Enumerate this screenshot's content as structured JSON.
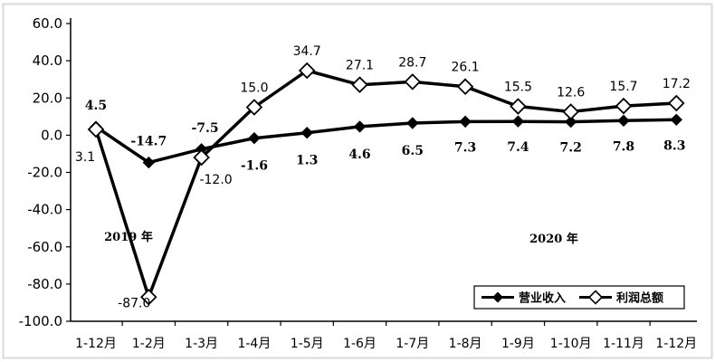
{
  "chart_data": {
    "type": "line",
    "categories": [
      "1-12月",
      "1-2月",
      "1-3月",
      "1-4月",
      "1-5月",
      "1-6月",
      "1-7月",
      "1-8月",
      "1-9月",
      "1-10月",
      "1-11月",
      "1-12月"
    ],
    "ylim": [
      -100.0,
      60.0
    ],
    "yticks": [
      "60.0",
      "40.0",
      "20.0",
      "0.0",
      "-20.0",
      "-40.0",
      "-60.0",
      "-80.0",
      "-100.0"
    ],
    "series": [
      {
        "name": "营业收入",
        "marker": "filled-diamond",
        "values": [
          4.5,
          -14.7,
          -7.5,
          -1.6,
          1.3,
          4.6,
          6.5,
          7.3,
          7.4,
          7.2,
          7.8,
          8.3
        ],
        "labels": [
          "4.5",
          "-14.7",
          "-7.5",
          "-1.6",
          "1.3",
          "4.6",
          "6.5",
          "7.3",
          "7.4",
          "7.2",
          "7.8",
          "8.3"
        ]
      },
      {
        "name": "利润总额",
        "marker": "hollow-diamond",
        "values": [
          3.1,
          -87.0,
          -12.0,
          15.0,
          34.7,
          27.1,
          28.7,
          26.1,
          15.5,
          12.6,
          15.7,
          17.2
        ],
        "labels": [
          "3.1",
          "-87.0",
          "-12.0",
          "15.0",
          "34.7",
          "27.1",
          "28.7",
          "26.1",
          "15.5",
          "12.6",
          "15.7",
          "17.2"
        ]
      }
    ],
    "annotations": [
      "2019 年",
      "2020 年"
    ],
    "legend_position": "bottom-right",
    "grid": false
  },
  "colors": {
    "line": "#000000",
    "background": "#ffffff",
    "frame": "#d9d9d9"
  }
}
